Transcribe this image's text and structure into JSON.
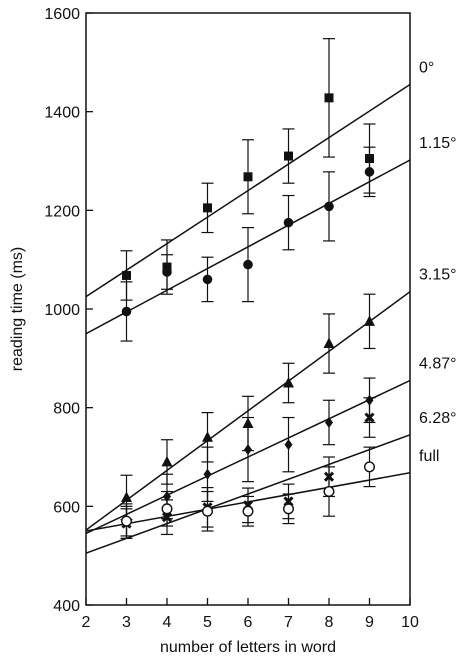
{
  "chart_data": {
    "type": "scatter",
    "title": "",
    "xlabel": "number of letters in word",
    "ylabel": "reading time (ms)",
    "xlim": [
      2,
      10
    ],
    "ylim": [
      400,
      1600
    ],
    "xticks": [
      2,
      3,
      4,
      5,
      6,
      7,
      8,
      9,
      10
    ],
    "yticks": [
      400,
      600,
      800,
      1000,
      1200,
      1400,
      1600
    ],
    "grid": false,
    "legend": "series labels at right end of fitted lines",
    "series": [
      {
        "name": "0°",
        "marker": "square",
        "x": [
          3,
          4,
          5,
          6,
          7,
          8,
          9
        ],
        "y": [
          1068,
          1085,
          1205,
          1268,
          1310,
          1428,
          1305
        ],
        "err": [
          50,
          55,
          50,
          75,
          55,
          120,
          70
        ],
        "fit": [
          [
            2,
            1025
          ],
          [
            10,
            1455
          ]
        ]
      },
      {
        "name": "1.15°",
        "marker": "circle-filled",
        "x": [
          3,
          4,
          5,
          6,
          7,
          8,
          9
        ],
        "y": [
          995,
          1075,
          1060,
          1090,
          1175,
          1208,
          1278
        ],
        "err": [
          60,
          35,
          45,
          75,
          55,
          70,
          50
        ],
        "fit": [
          [
            2,
            950
          ],
          [
            10,
            1302
          ]
        ]
      },
      {
        "name": "3.15°",
        "marker": "triangle",
        "x": [
          3,
          4,
          5,
          6,
          7,
          8,
          9
        ],
        "y": [
          618,
          690,
          740,
          768,
          850,
          930,
          975
        ],
        "err": [
          45,
          45,
          50,
          55,
          40,
          60,
          55
        ],
        "fit": [
          [
            2,
            552
          ],
          [
            10,
            1035
          ]
        ]
      },
      {
        "name": "4.87°",
        "marker": "diamond",
        "x": [
          3,
          4,
          5,
          6,
          7,
          8,
          9
        ],
        "y": [
          570,
          620,
          665,
          715,
          725,
          770,
          815
        ],
        "err": [
          35,
          45,
          55,
          65,
          55,
          45,
          45
        ],
        "fit": [
          [
            2,
            545
          ],
          [
            10,
            855
          ]
        ]
      },
      {
        "name": "6.28°",
        "marker": "cross",
        "x": [
          3,
          4,
          5,
          6,
          7,
          8,
          9
        ],
        "y": [
          565,
          578,
          598,
          602,
          610,
          660,
          780
        ],
        "err": [
          30,
          35,
          40,
          35,
          35,
          40,
          40
        ],
        "fit": [
          [
            2,
            505
          ],
          [
            10,
            745
          ]
        ]
      },
      {
        "name": "full",
        "marker": "circle-open",
        "x": [
          3,
          4,
          5,
          6,
          7,
          8,
          9
        ],
        "y": [
          570,
          595,
          590,
          590,
          595,
          630,
          680
        ],
        "err": [
          30,
          35,
          40,
          30,
          30,
          50,
          40
        ],
        "fit": [
          [
            2,
            550
          ],
          [
            10,
            668
          ]
        ]
      }
    ]
  }
}
